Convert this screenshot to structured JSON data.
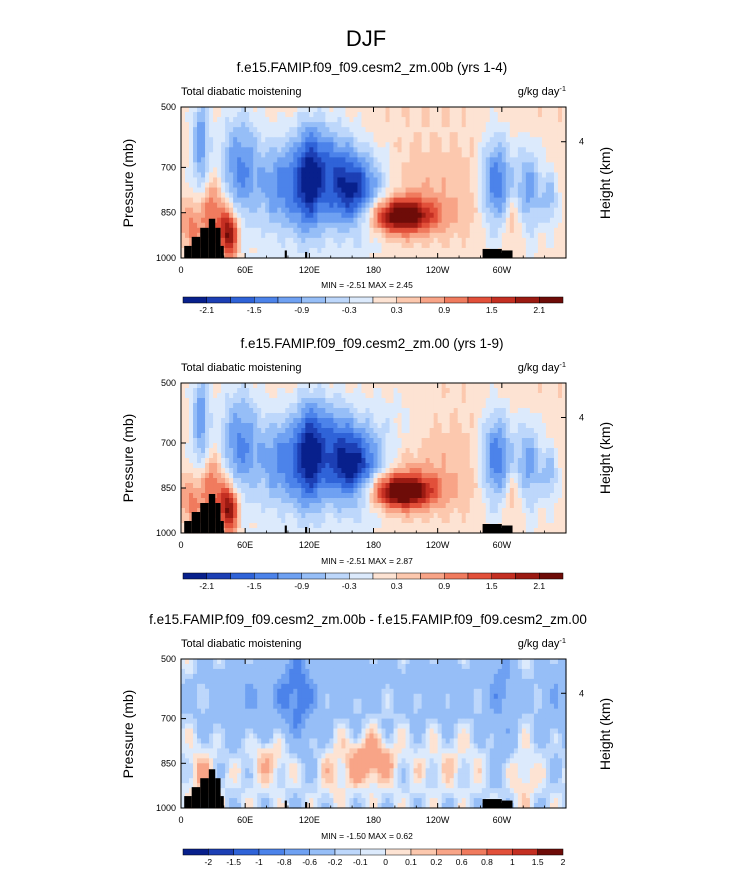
{
  "page_title": "DJF",
  "palettes": {
    "main": [
      "#08208c",
      "#1c3fb4",
      "#2f63d8",
      "#4c83ea",
      "#6fa1f2",
      "#96bef7",
      "#bdd7fb",
      "#dceafc",
      "#fde3d3",
      "#fcc8ae",
      "#f8a487",
      "#f07b5e",
      "#e2503a",
      "#c42f22",
      "#9b1a12",
      "#6e0c08"
    ],
    "diff": [
      "#08208c",
      "#1c3fb4",
      "#2f63d8",
      "#4c83ea",
      "#6fa1f2",
      "#96bef7",
      "#bdd7fb",
      "#dceafc",
      "#fde3d3",
      "#fcc8ae",
      "#f8a487",
      "#f07b5e",
      "#e2503a",
      "#c42f22",
      "#6e0c08"
    ]
  },
  "chart_data": [
    {
      "type": "heatmap",
      "title": "f.e15.FAMIP.f09_f09.cesm2_zm.00b (yrs 1-4)",
      "left_label": "Total diabatic moistening",
      "units": "g/kg day",
      "units_exp": "-1",
      "ylabel": "Pressure (mb)",
      "ylabel_right": "Height (km)",
      "right_ticks": [
        "4"
      ],
      "xlim": [
        0,
        360
      ],
      "ylim": [
        1000,
        500
      ],
      "x_ticks": [
        {
          "v": 0,
          "l": "0"
        },
        {
          "v": 60,
          "l": "60E"
        },
        {
          "v": 120,
          "l": "120E"
        },
        {
          "v": 180,
          "l": "180"
        },
        {
          "v": 240,
          "l": "120W"
        },
        {
          "v": 300,
          "l": "60W"
        }
      ],
      "y_ticks": [
        {
          "v": 500,
          "l": "500"
        },
        {
          "v": 700,
          "l": "700"
        },
        {
          "v": 850,
          "l": "850"
        },
        {
          "v": 1000,
          "l": "1000"
        }
      ],
      "stats": "MIN = -2.51   MAX =  2.45",
      "min": -2.51,
      "max": 2.45,
      "palette": "main",
      "levels": [
        -2.4,
        -2.1,
        -1.8,
        -1.5,
        -1.2,
        -0.9,
        -0.6,
        -0.3,
        0,
        0.3,
        0.6,
        0.9,
        1.2,
        1.5,
        1.8,
        2.1,
        2.4
      ],
      "colorbar_labels": [
        "-2.1",
        "-1.5",
        "-0.9",
        "-0.3",
        "0.3",
        "0.9",
        "1.5",
        "2.1"
      ],
      "colorbar_label_idx": [
        1,
        3,
        5,
        7,
        9,
        11,
        13,
        15
      ],
      "mode": "control"
    },
    {
      "type": "heatmap",
      "title": "f.e15.FAMIP.f09_f09.cesm2_zm.00 (yrs 1-9)",
      "left_label": "Total diabatic moistening",
      "units": "g/kg day",
      "units_exp": "-1",
      "ylabel": "Pressure (mb)",
      "ylabel_right": "Height (km)",
      "right_ticks": [
        "4"
      ],
      "xlim": [
        0,
        360
      ],
      "ylim": [
        1000,
        500
      ],
      "x_ticks": [
        {
          "v": 0,
          "l": "0"
        },
        {
          "v": 60,
          "l": "60E"
        },
        {
          "v": 120,
          "l": "120E"
        },
        {
          "v": 180,
          "l": "180"
        },
        {
          "v": 240,
          "l": "120W"
        },
        {
          "v": 300,
          "l": "60W"
        }
      ],
      "y_ticks": [
        {
          "v": 500,
          "l": "500"
        },
        {
          "v": 700,
          "l": "700"
        },
        {
          "v": 850,
          "l": "850"
        },
        {
          "v": 1000,
          "l": "1000"
        }
      ],
      "stats": "MIN = -2.51   MAX =  2.87",
      "min": -2.51,
      "max": 2.87,
      "palette": "main",
      "levels": [
        -2.4,
        -2.1,
        -1.8,
        -1.5,
        -1.2,
        -0.9,
        -0.6,
        -0.3,
        0,
        0.3,
        0.6,
        0.9,
        1.2,
        1.5,
        1.8,
        2.1,
        2.4
      ],
      "colorbar_labels": [
        "-2.1",
        "-1.5",
        "-0.9",
        "-0.3",
        "0.3",
        "0.9",
        "1.5",
        "2.1"
      ],
      "colorbar_label_idx": [
        1,
        3,
        5,
        7,
        9,
        11,
        13,
        15
      ],
      "mode": "test"
    },
    {
      "type": "heatmap",
      "title": "f.e15.FAMIP.f09_f09.cesm2_zm.00b - f.e15.FAMIP.f09_f09.cesm2_zm.00",
      "left_label": "Total diabatic moistening",
      "units": "g/kg day",
      "units_exp": "-1",
      "ylabel": "Pressure (mb)",
      "ylabel_right": "Height (km)",
      "right_ticks": [
        "4"
      ],
      "xlim": [
        0,
        360
      ],
      "ylim": [
        1000,
        500
      ],
      "x_ticks": [
        {
          "v": 0,
          "l": "0"
        },
        {
          "v": 60,
          "l": "60E"
        },
        {
          "v": 120,
          "l": "120E"
        },
        {
          "v": 180,
          "l": "180"
        },
        {
          "v": 240,
          "l": "120W"
        },
        {
          "v": 300,
          "l": "60W"
        }
      ],
      "y_ticks": [
        {
          "v": 500,
          "l": "500"
        },
        {
          "v": 700,
          "l": "700"
        },
        {
          "v": 850,
          "l": "850"
        },
        {
          "v": 1000,
          "l": "1000"
        }
      ],
      "stats": "MIN = -1.50   MAX =  0.62",
      "min": -1.5,
      "max": 0.62,
      "palette": "diff",
      "levels": [
        -2.5,
        -2,
        -1.5,
        -1,
        -0.8,
        -0.6,
        -0.2,
        -0.1,
        0,
        0.1,
        0.2,
        0.6,
        0.8,
        1,
        1.5,
        2
      ],
      "colorbar_labels": [
        "-2",
        "-1.5",
        "-1",
        "-0.8",
        "-0.6",
        "-0.2",
        "-0.1",
        "0",
        "0.1",
        "0.2",
        "0.6",
        "0.8",
        "1",
        "1.5",
        "2"
      ],
      "colorbar_label_idx": [
        1,
        2,
        3,
        4,
        5,
        6,
        7,
        8,
        9,
        10,
        11,
        12,
        13,
        14,
        15
      ],
      "mode": "diff"
    }
  ]
}
